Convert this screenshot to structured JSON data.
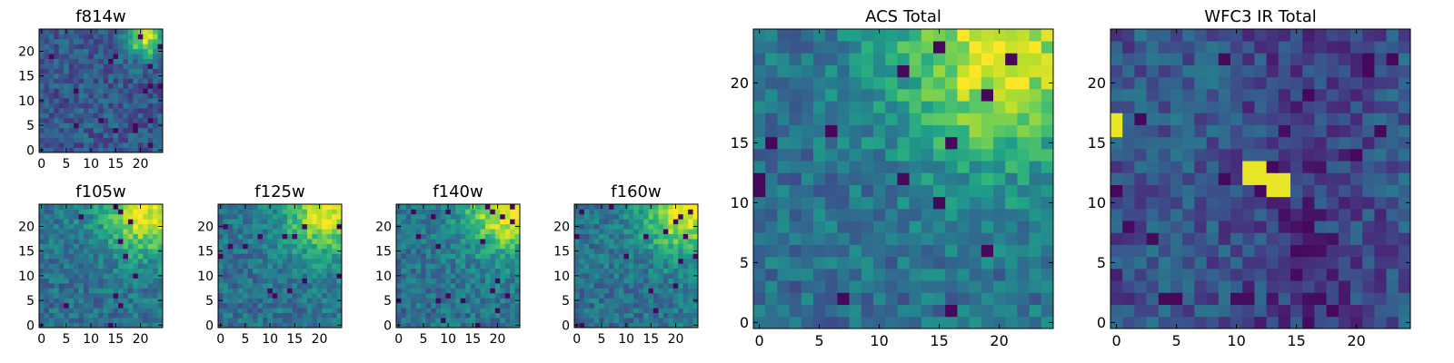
{
  "chart_data": [
    {
      "type": "heatmap",
      "title": "f814w",
      "colormap": "viridis",
      "grid_size": 25,
      "xlim": [
        -0.5,
        24.5
      ],
      "ylim": [
        -0.5,
        24.5
      ],
      "xticks": [
        0,
        5,
        10,
        15,
        20
      ],
      "yticks": [
        0,
        5,
        10,
        15,
        20
      ],
      "tick_labels_x": [
        "0",
        "5",
        "10",
        "15",
        "20"
      ],
      "tick_labels_y": [
        "0",
        "5",
        "10",
        "15",
        "20"
      ],
      "bright_region": "top-right",
      "bright_peak": [
        21,
        23
      ],
      "value_range": [
        0,
        1
      ],
      "values_note": "per-pixel values not individually recoverable; field rendered as estimated noise with bright corner"
    },
    {
      "type": "heatmap",
      "title": "f105w",
      "colormap": "viridis",
      "grid_size": 25,
      "xlim": [
        -0.5,
        24.5
      ],
      "ylim": [
        -0.5,
        24.5
      ],
      "xticks": [
        0,
        5,
        10,
        15,
        20
      ],
      "yticks": [
        0,
        5,
        10,
        15,
        20
      ],
      "tick_labels_x": [
        "0",
        "5",
        "10",
        "15",
        "20"
      ],
      "tick_labels_y": [
        "0",
        "5",
        "10",
        "15",
        "20"
      ],
      "bright_region": "top-right",
      "bright_peak": [
        21,
        23
      ],
      "value_range": [
        0,
        1
      ]
    },
    {
      "type": "heatmap",
      "title": "f125w",
      "colormap": "viridis",
      "grid_size": 25,
      "xlim": [
        -0.5,
        24.5
      ],
      "ylim": [
        -0.5,
        24.5
      ],
      "xticks": [
        0,
        5,
        10,
        15,
        20
      ],
      "yticks": [
        0,
        5,
        10,
        15,
        20
      ],
      "tick_labels_x": [
        "0",
        "5",
        "10",
        "15",
        "20"
      ],
      "tick_labels_y": [
        "0",
        "5",
        "10",
        "15",
        "20"
      ],
      "bright_region": "top-right",
      "bright_peak": [
        22,
        23
      ],
      "value_range": [
        0,
        1
      ]
    },
    {
      "type": "heatmap",
      "title": "f140w",
      "colormap": "viridis",
      "grid_size": 25,
      "xlim": [
        -0.5,
        24.5
      ],
      "ylim": [
        -0.5,
        24.5
      ],
      "xticks": [
        0,
        5,
        10,
        15,
        20
      ],
      "yticks": [
        0,
        5,
        10,
        15,
        20
      ],
      "tick_labels_x": [
        "0",
        "5",
        "10",
        "15",
        "20"
      ],
      "tick_labels_y": [
        "0",
        "5",
        "10",
        "15",
        "20"
      ],
      "bright_region": "top-right",
      "bright_peak": [
        22,
        23
      ],
      "value_range": [
        0,
        1
      ]
    },
    {
      "type": "heatmap",
      "title": "f160w",
      "colormap": "viridis",
      "grid_size": 25,
      "xlim": [
        -0.5,
        24.5
      ],
      "ylim": [
        -0.5,
        24.5
      ],
      "xticks": [
        0,
        5,
        10,
        15,
        20
      ],
      "yticks": [
        0,
        5,
        10,
        15,
        20
      ],
      "tick_labels_x": [
        "0",
        "5",
        "10",
        "15",
        "20"
      ],
      "tick_labels_y": [
        "0",
        "5",
        "10",
        "15",
        "20"
      ],
      "bright_region": "top-right",
      "bright_peak": [
        22,
        23
      ],
      "value_range": [
        0,
        1
      ]
    },
    {
      "type": "heatmap",
      "title": "ACS Total",
      "colormap": "viridis",
      "grid_size": 25,
      "xlim": [
        -0.5,
        24.5
      ],
      "ylim": [
        -0.5,
        24.5
      ],
      "xticks": [
        0,
        5,
        10,
        15,
        20
      ],
      "yticks": [
        0,
        5,
        10,
        15,
        20
      ],
      "tick_labels_x": [
        "0",
        "5",
        "10",
        "15",
        "20"
      ],
      "tick_labels_y": [
        "0",
        "5",
        "10",
        "15",
        "20"
      ],
      "bright_region": "top-right",
      "bright_peak": [
        20,
        22
      ],
      "value_range": [
        0,
        1
      ]
    },
    {
      "type": "heatmap",
      "title": "WFC3 IR Total",
      "colormap": "viridis",
      "grid_size": 25,
      "xlim": [
        -0.5,
        24.5
      ],
      "ylim": [
        -0.5,
        24.5
      ],
      "xticks": [
        0,
        5,
        10,
        15,
        20
      ],
      "yticks": [
        0,
        5,
        10,
        15,
        20
      ],
      "tick_labels_x": [
        "0",
        "5",
        "10",
        "15",
        "20"
      ],
      "tick_labels_y": [
        "0",
        "5",
        "10",
        "15",
        "20"
      ],
      "bright_region": "center and left edge",
      "bright_pixels": [
        [
          11,
          13
        ],
        [
          12,
          13
        ],
        [
          11,
          12
        ],
        [
          12,
          12
        ],
        [
          13,
          12
        ],
        [
          14,
          12
        ],
        [
          13,
          11
        ],
        [
          14,
          11
        ],
        [
          0,
          16
        ],
        [
          0,
          17
        ]
      ],
      "value_range": [
        0,
        1
      ]
    }
  ]
}
